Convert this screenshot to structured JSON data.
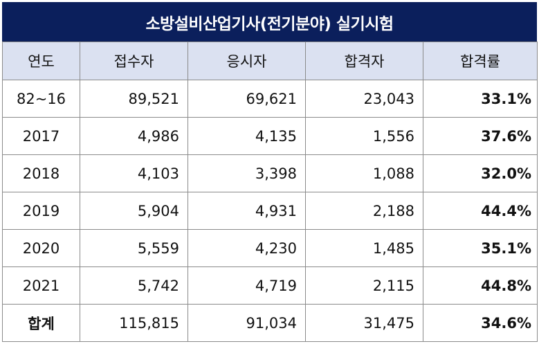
{
  "title": "소방설비산업기사(전기분야) 실기시험",
  "columns": [
    "연도",
    "접수자",
    "응시자",
    "합격자",
    "합격률"
  ],
  "rows": [
    {
      "year": "82~16",
      "applicants": "89,521",
      "examinees": "69,621",
      "passers": "23,043",
      "rate": "33.1%"
    },
    {
      "year": "2017",
      "applicants": "4,986",
      "examinees": "4,135",
      "passers": "1,556",
      "rate": "37.6%"
    },
    {
      "year": "2018",
      "applicants": "4,103",
      "examinees": "3,398",
      "passers": "1,088",
      "rate": "32.0%"
    },
    {
      "year": "2019",
      "applicants": "5,904",
      "examinees": "4,931",
      "passers": "2,188",
      "rate": "44.4%"
    },
    {
      "year": "2020",
      "applicants": "5,559",
      "examinees": "4,230",
      "passers": "1,485",
      "rate": "35.1%"
    },
    {
      "year": "2021",
      "applicants": "5,742",
      "examinees": "4,719",
      "passers": "2,115",
      "rate": "44.8%"
    },
    {
      "year": "합계",
      "applicants": "115,815",
      "examinees": "91,034",
      "passers": "31,475",
      "rate": "34.6%"
    }
  ],
  "colors": {
    "title_bg": "#0b1f5c",
    "header_bg": "#dbe1f1",
    "border": "#8a8a8a"
  }
}
